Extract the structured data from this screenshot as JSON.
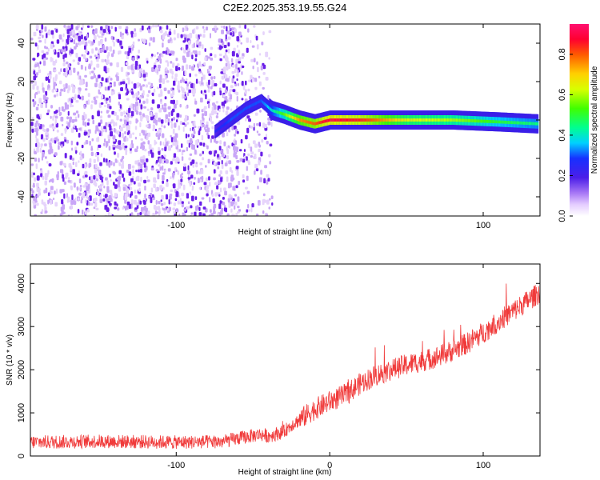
{
  "title": "C2E2.2025.353.19.55.G24",
  "colors": {
    "trace": "#f03a3a",
    "speckle": "#7a2cf0",
    "background": "#ffffff"
  },
  "chart_data": [
    {
      "type": "heatmap",
      "xlabel": "Height of straight line (km)",
      "ylabel": "Frequency (Hz)",
      "xlim": [
        -195,
        137
      ],
      "ylim": [
        -50,
        50
      ],
      "x_ticks": [
        -100,
        0,
        100
      ],
      "x_tick_labels": [
        "-100",
        "0",
        "100"
      ],
      "y_ticks": [
        -40,
        -20,
        0,
        20,
        40
      ],
      "y_tick_labels": [
        "-40",
        "-20",
        "0",
        "20",
        "40"
      ],
      "colorbar": {
        "label": "Normalized spectral amplitude",
        "range": [
          0,
          0.95
        ],
        "ticks": [
          0.0,
          0.2,
          0.4,
          0.6,
          0.8
        ],
        "tick_labels": [
          "0.0",
          "0.2",
          "0.4",
          "0.6",
          "0.8"
        ]
      },
      "ridge": {
        "x": [
          -75,
          -65,
          -55,
          -45,
          -38,
          -30,
          -20,
          -10,
          0,
          20,
          50,
          80,
          110,
          135
        ],
        "frequency": [
          -6,
          0,
          6,
          10,
          5,
          3,
          0,
          -2,
          0,
          0,
          0,
          0,
          -1,
          -2
        ],
        "amplitude": [
          0.25,
          0.3,
          0.3,
          0.3,
          0.4,
          0.55,
          0.75,
          0.8,
          0.9,
          0.85,
          0.65,
          0.6,
          0.5,
          0.45
        ]
      },
      "noise_region": {
        "x_start": -195,
        "x_end": -38,
        "amplitude": 0.1
      }
    },
    {
      "type": "line",
      "xlabel": "Height of straight line (km)",
      "ylabel": "SNR (10 * v/v)",
      "xlim": [
        -195,
        137
      ],
      "ylim": [
        0,
        4450
      ],
      "x_ticks": [
        -100,
        0,
        100
      ],
      "x_tick_labels": [
        "-100",
        "0",
        "100"
      ],
      "y_ticks": [
        0,
        1000,
        2000,
        3000,
        4000
      ],
      "y_tick_labels": [
        "0",
        "1000",
        "2000",
        "3000",
        "4000"
      ],
      "series": [
        {
          "x": [
            -195,
            -150,
            -100,
            -70,
            -55,
            -45,
            -40,
            -30,
            -25,
            -20,
            -10,
            0,
            10,
            20,
            30,
            40,
            50,
            60,
            70,
            80,
            90,
            100,
            110,
            120,
            130,
            137
          ],
          "y": [
            320,
            340,
            320,
            330,
            440,
            500,
            460,
            560,
            720,
            830,
            1080,
            1260,
            1420,
            1680,
            1870,
            2000,
            2110,
            2200,
            2300,
            2440,
            2620,
            2860,
            3120,
            3370,
            3620,
            3800
          ],
          "noise": 160
        }
      ]
    }
  ]
}
